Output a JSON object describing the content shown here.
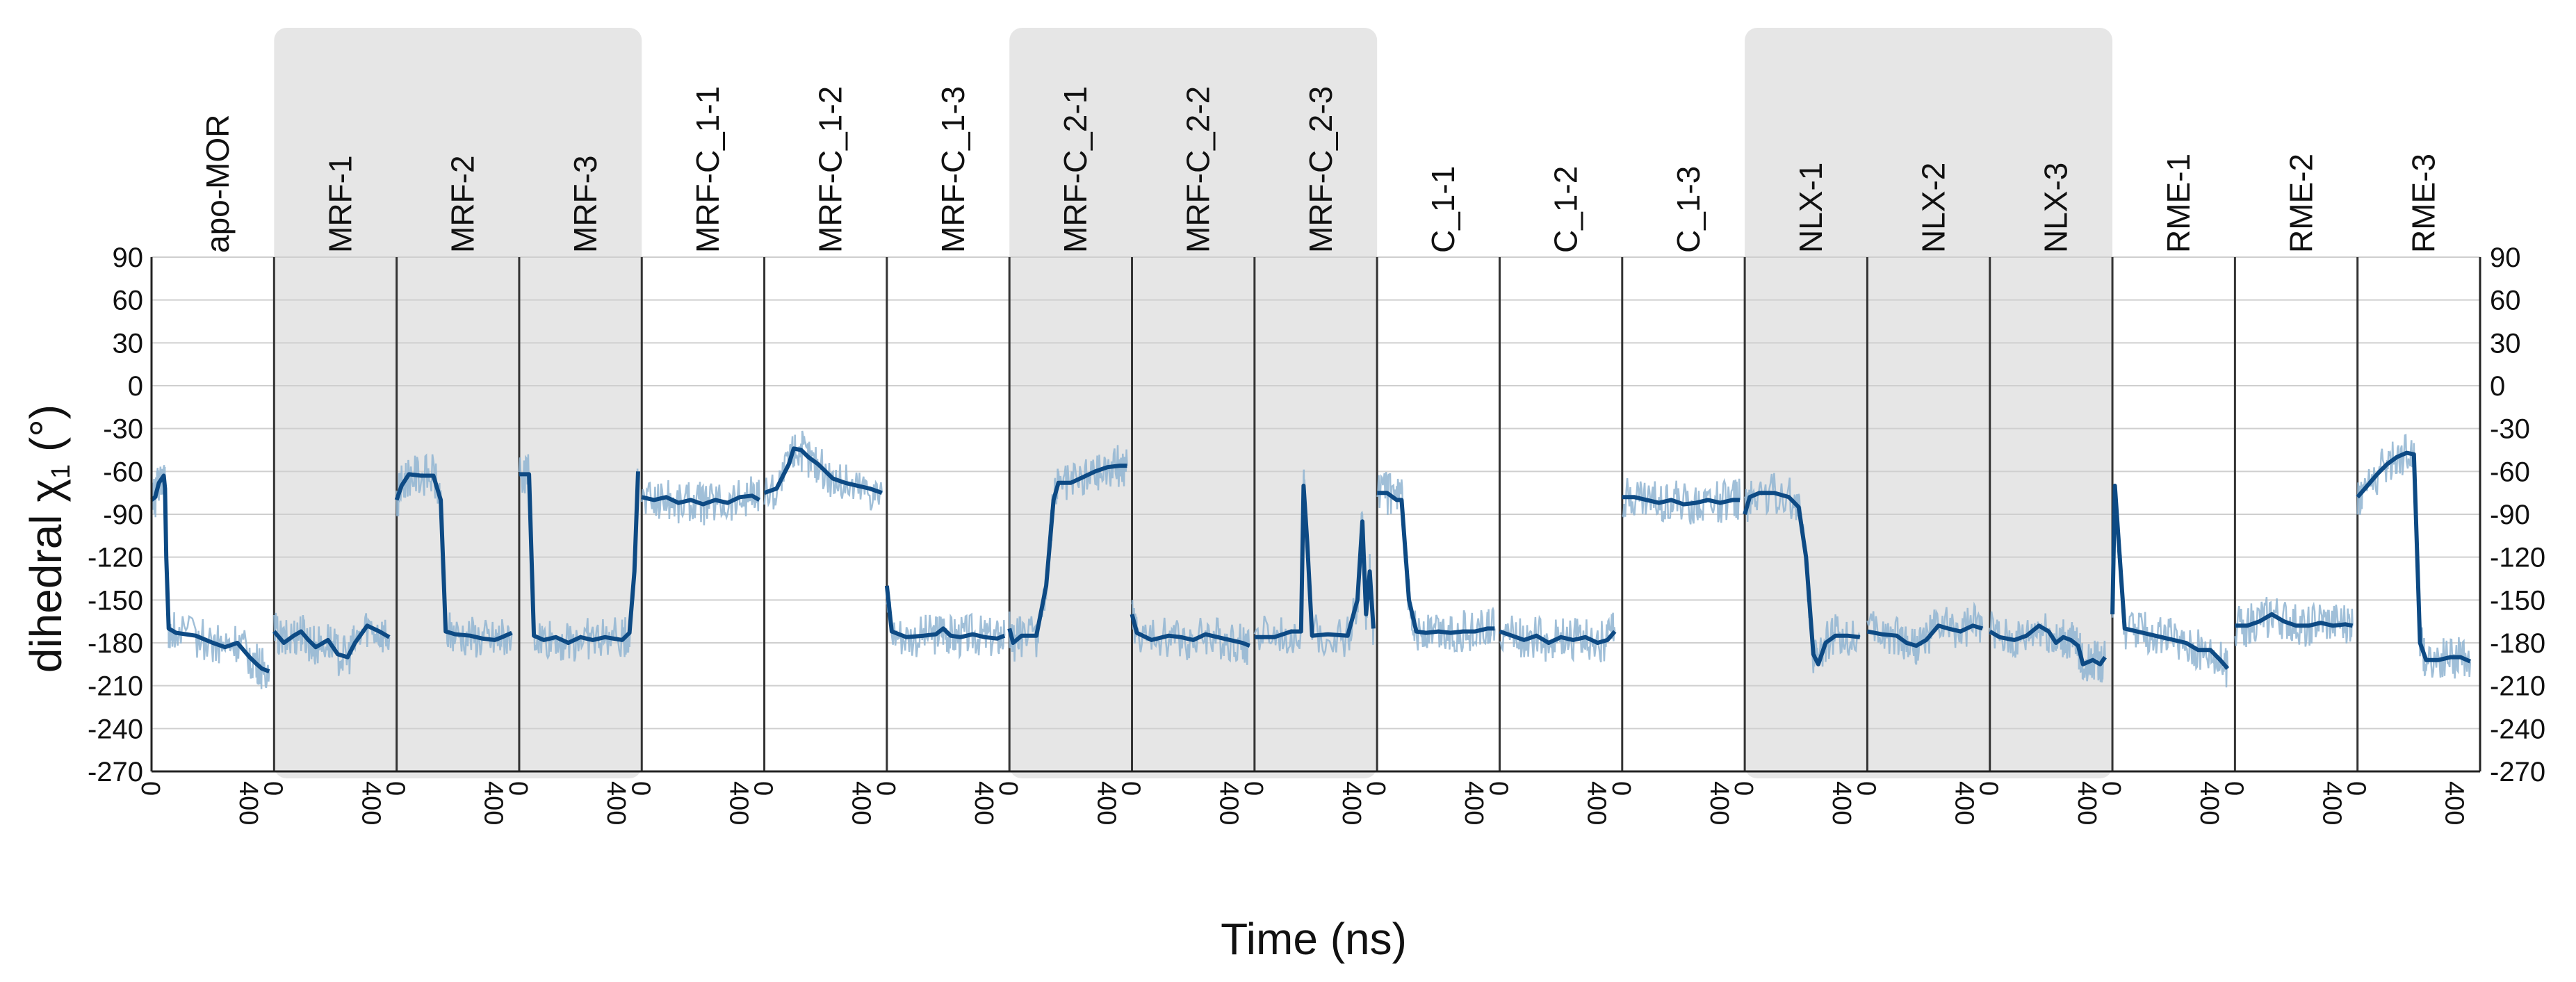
{
  "chart_data": {
    "type": "line",
    "xlabel": "Time (ns)",
    "ylabel_prefix": "dihedral ",
    "ylabel_symbol": "χ",
    "ylabel_subscript": "1",
    "ylabel_suffix": " (°)",
    "ylim": [
      -270,
      90
    ],
    "yticks_left": [
      90,
      60,
      30,
      0,
      -30,
      -60,
      -90,
      -120,
      -150,
      -180,
      -210,
      -240,
      -270
    ],
    "yticks_right": [
      90,
      60,
      30,
      0,
      -30,
      -60,
      -90,
      -120,
      -150,
      -180,
      -210,
      -240,
      -270
    ],
    "xlim_per_panel": [
      0,
      500
    ],
    "xticks_per_panel": [
      0,
      400
    ],
    "grid": true,
    "colors": {
      "raw": "#8fb4d1",
      "smoothed": "#0d4a84",
      "shaded_panel": "#e6e6e6",
      "grid": "#cfcfcf",
      "divider": "#333333"
    },
    "panels": [
      {
        "label": "apo-MOR",
        "shaded": false,
        "segments": [
          [
            0,
            -80
          ],
          [
            15,
            -78
          ],
          [
            30,
            -68
          ],
          [
            50,
            -63
          ],
          [
            55,
            -72
          ],
          [
            60,
            -120
          ],
          [
            70,
            -170
          ],
          [
            100,
            -173
          ],
          [
            180,
            -175
          ],
          [
            250,
            -180
          ],
          [
            300,
            -183
          ],
          [
            350,
            -180
          ],
          [
            400,
            -190
          ],
          [
            430,
            -195
          ],
          [
            450,
            -198
          ],
          [
            480,
            -200
          ]
        ]
      },
      {
        "label": "MRF-1",
        "shaded": true,
        "segments": [
          [
            0,
            -172
          ],
          [
            40,
            -180
          ],
          [
            80,
            -175
          ],
          [
            110,
            -172
          ],
          [
            140,
            -178
          ],
          [
            170,
            -183
          ],
          [
            220,
            -178
          ],
          [
            260,
            -188
          ],
          [
            300,
            -190
          ],
          [
            330,
            -180
          ],
          [
            380,
            -168
          ],
          [
            430,
            -172
          ],
          [
            470,
            -176
          ]
        ]
      },
      {
        "label": "MRF-2",
        "shaded": true,
        "segments": [
          [
            0,
            -80
          ],
          [
            20,
            -70
          ],
          [
            50,
            -62
          ],
          [
            100,
            -63
          ],
          [
            150,
            -63
          ],
          [
            180,
            -80
          ],
          [
            200,
            -172
          ],
          [
            240,
            -174
          ],
          [
            300,
            -175
          ],
          [
            350,
            -177
          ],
          [
            400,
            -178
          ],
          [
            430,
            -176
          ],
          [
            470,
            -173
          ]
        ]
      },
      {
        "label": "MRF-3",
        "shaded": true,
        "segments": [
          [
            0,
            -62
          ],
          [
            40,
            -62
          ],
          [
            60,
            -175
          ],
          [
            100,
            -178
          ],
          [
            150,
            -176
          ],
          [
            200,
            -180
          ],
          [
            250,
            -176
          ],
          [
            300,
            -178
          ],
          [
            350,
            -176
          ],
          [
            420,
            -178
          ],
          [
            450,
            -173
          ],
          [
            470,
            -130
          ],
          [
            485,
            -60
          ]
        ]
      },
      {
        "label": "MRF-C_1-1",
        "shaded": false,
        "segments": [
          [
            0,
            -78
          ],
          [
            50,
            -80
          ],
          [
            100,
            -78
          ],
          [
            150,
            -82
          ],
          [
            200,
            -80
          ],
          [
            250,
            -83
          ],
          [
            300,
            -80
          ],
          [
            350,
            -82
          ],
          [
            400,
            -78
          ],
          [
            450,
            -77
          ],
          [
            480,
            -80
          ]
        ]
      },
      {
        "label": "MRF-C_1-2",
        "shaded": false,
        "segments": [
          [
            0,
            -75
          ],
          [
            50,
            -72
          ],
          [
            100,
            -55
          ],
          [
            120,
            -44
          ],
          [
            150,
            -45
          ],
          [
            180,
            -50
          ],
          [
            220,
            -55
          ],
          [
            280,
            -65
          ],
          [
            330,
            -68
          ],
          [
            380,
            -70
          ],
          [
            430,
            -72
          ],
          [
            480,
            -75
          ]
        ]
      },
      {
        "label": "MRF-C_1-3",
        "shaded": false,
        "segments": [
          [
            0,
            -140
          ],
          [
            20,
            -172
          ],
          [
            80,
            -176
          ],
          [
            150,
            -175
          ],
          [
            200,
            -174
          ],
          [
            230,
            -170
          ],
          [
            260,
            -175
          ],
          [
            300,
            -176
          ],
          [
            350,
            -174
          ],
          [
            400,
            -176
          ],
          [
            450,
            -177
          ],
          [
            480,
            -175
          ]
        ]
      },
      {
        "label": "MRF-C_2-1",
        "shaded": true,
        "segments": [
          [
            0,
            -170
          ],
          [
            15,
            -180
          ],
          [
            50,
            -175
          ],
          [
            110,
            -175
          ],
          [
            150,
            -140
          ],
          [
            180,
            -80
          ],
          [
            200,
            -68
          ],
          [
            250,
            -68
          ],
          [
            300,
            -64
          ],
          [
            350,
            -60
          ],
          [
            400,
            -57
          ],
          [
            450,
            -56
          ],
          [
            480,
            -56
          ]
        ]
      },
      {
        "label": "MRF-C_2-2",
        "shaded": true,
        "segments": [
          [
            0,
            -160
          ],
          [
            20,
            -173
          ],
          [
            80,
            -178
          ],
          [
            150,
            -175
          ],
          [
            200,
            -176
          ],
          [
            250,
            -178
          ],
          [
            300,
            -174
          ],
          [
            350,
            -176
          ],
          [
            400,
            -178
          ],
          [
            450,
            -180
          ],
          [
            480,
            -182
          ]
        ]
      },
      {
        "label": "MRF-C_2-3",
        "shaded": true,
        "segments": [
          [
            0,
            -176
          ],
          [
            80,
            -176
          ],
          [
            150,
            -172
          ],
          [
            190,
            -172
          ],
          [
            200,
            -70
          ],
          [
            215,
            -110
          ],
          [
            235,
            -175
          ],
          [
            300,
            -174
          ],
          [
            380,
            -175
          ],
          [
            420,
            -150
          ],
          [
            440,
            -95
          ],
          [
            455,
            -160
          ],
          [
            470,
            -130
          ],
          [
            485,
            -170
          ]
        ]
      },
      {
        "label": "C_1-1",
        "shaded": false,
        "segments": [
          [
            0,
            -75
          ],
          [
            40,
            -75
          ],
          [
            80,
            -80
          ],
          [
            100,
            -80
          ],
          [
            130,
            -150
          ],
          [
            160,
            -172
          ],
          [
            200,
            -173
          ],
          [
            250,
            -172
          ],
          [
            300,
            -173
          ],
          [
            350,
            -172
          ],
          [
            400,
            -172
          ],
          [
            450,
            -170
          ],
          [
            480,
            -170
          ]
        ]
      },
      {
        "label": "C_1-2",
        "shaded": false,
        "segments": [
          [
            0,
            -172
          ],
          [
            50,
            -175
          ],
          [
            100,
            -178
          ],
          [
            150,
            -175
          ],
          [
            200,
            -180
          ],
          [
            250,
            -176
          ],
          [
            300,
            -178
          ],
          [
            350,
            -176
          ],
          [
            400,
            -180
          ],
          [
            440,
            -178
          ],
          [
            470,
            -172
          ]
        ]
      },
      {
        "label": "C_1-3",
        "shaded": false,
        "segments": [
          [
            0,
            -78
          ],
          [
            50,
            -78
          ],
          [
            100,
            -80
          ],
          [
            150,
            -82
          ],
          [
            200,
            -80
          ],
          [
            250,
            -83
          ],
          [
            300,
            -82
          ],
          [
            350,
            -80
          ],
          [
            400,
            -82
          ],
          [
            450,
            -80
          ],
          [
            480,
            -80
          ]
        ]
      },
      {
        "label": "NLX-1",
        "shaded": true,
        "segments": [
          [
            0,
            -90
          ],
          [
            20,
            -78
          ],
          [
            60,
            -75
          ],
          [
            120,
            -75
          ],
          [
            180,
            -78
          ],
          [
            220,
            -85
          ],
          [
            250,
            -120
          ],
          [
            280,
            -188
          ],
          [
            300,
            -195
          ],
          [
            330,
            -180
          ],
          [
            370,
            -175
          ],
          [
            420,
            -175
          ],
          [
            470,
            -176
          ]
        ]
      },
      {
        "label": "NLX-2",
        "shaded": true,
        "segments": [
          [
            0,
            -172
          ],
          [
            60,
            -174
          ],
          [
            120,
            -175
          ],
          [
            160,
            -180
          ],
          [
            200,
            -182
          ],
          [
            240,
            -178
          ],
          [
            290,
            -168
          ],
          [
            330,
            -170
          ],
          [
            380,
            -172
          ],
          [
            430,
            -168
          ],
          [
            470,
            -170
          ]
        ]
      },
      {
        "label": "NLX-3",
        "shaded": true,
        "segments": [
          [
            0,
            -172
          ],
          [
            40,
            -176
          ],
          [
            100,
            -178
          ],
          [
            150,
            -175
          ],
          [
            200,
            -168
          ],
          [
            240,
            -172
          ],
          [
            270,
            -180
          ],
          [
            300,
            -176
          ],
          [
            330,
            -178
          ],
          [
            360,
            -182
          ],
          [
            380,
            -195
          ],
          [
            420,
            -192
          ],
          [
            450,
            -195
          ],
          [
            470,
            -190
          ]
        ]
      },
      {
        "label": "RME-1",
        "shaded": false,
        "segments": [
          [
            0,
            -160
          ],
          [
            10,
            -70
          ],
          [
            30,
            -120
          ],
          [
            50,
            -170
          ],
          [
            100,
            -172
          ],
          [
            150,
            -174
          ],
          [
            200,
            -176
          ],
          [
            250,
            -178
          ],
          [
            300,
            -180
          ],
          [
            350,
            -185
          ],
          [
            400,
            -185
          ],
          [
            440,
            -192
          ],
          [
            470,
            -198
          ]
        ]
      },
      {
        "label": "RME-2",
        "shaded": false,
        "segments": [
          [
            0,
            -168
          ],
          [
            50,
            -168
          ],
          [
            100,
            -165
          ],
          [
            150,
            -160
          ],
          [
            200,
            -165
          ],
          [
            250,
            -168
          ],
          [
            300,
            -168
          ],
          [
            350,
            -166
          ],
          [
            400,
            -168
          ],
          [
            450,
            -167
          ],
          [
            480,
            -168
          ]
        ]
      },
      {
        "label": "RME-3",
        "shaded": false,
        "segments": [
          [
            0,
            -78
          ],
          [
            30,
            -72
          ],
          [
            80,
            -62
          ],
          [
            120,
            -55
          ],
          [
            160,
            -50
          ],
          [
            200,
            -47
          ],
          [
            230,
            -48
          ],
          [
            255,
            -180
          ],
          [
            280,
            -192
          ],
          [
            330,
            -192
          ],
          [
            380,
            -190
          ],
          [
            420,
            -190
          ],
          [
            460,
            -193
          ]
        ]
      }
    ]
  }
}
